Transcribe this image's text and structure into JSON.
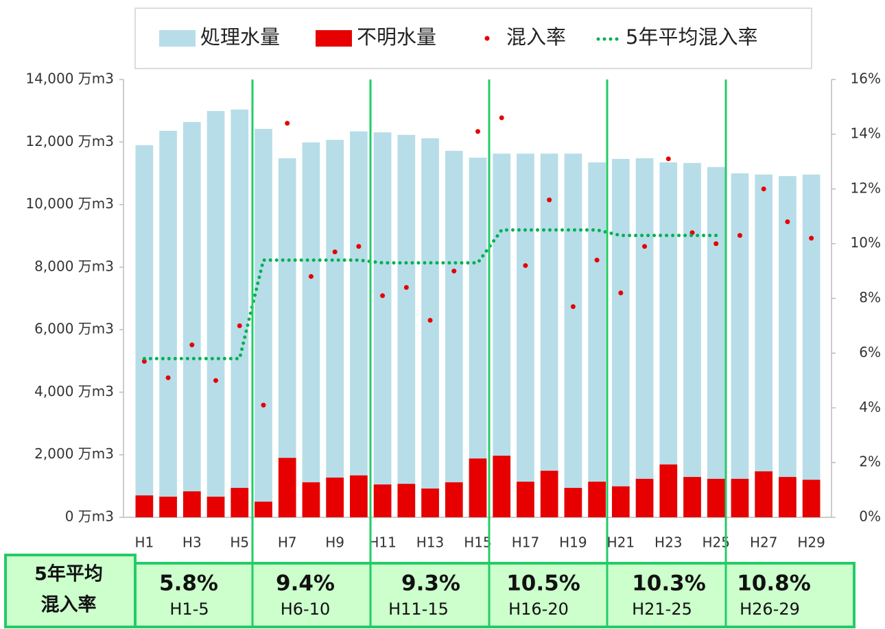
{
  "chart_data": {
    "type": "bar",
    "categories": [
      "H1",
      null,
      "H3",
      null,
      "H5",
      null,
      "H7",
      null,
      "H9",
      null,
      "H11",
      null,
      "H13",
      null,
      "H15",
      null,
      "H17",
      null,
      "H19",
      null,
      "H21",
      null,
      "H23",
      null,
      "H25",
      null,
      "H27",
      null,
      "H29"
    ],
    "series": [
      {
        "name": "処理水量",
        "type": "bar",
        "color": "#b7dde8",
        "values": [
          11900,
          12360,
          12640,
          12990,
          13040,
          12420,
          11480,
          11990,
          12070,
          12340,
          12310,
          12230,
          12120,
          11720,
          11500,
          11630,
          11630,
          11630,
          11630,
          11350,
          11460,
          11480,
          11350,
          11330,
          11200,
          11000,
          10960,
          10910,
          10960
        ]
      },
      {
        "name": "不明水量",
        "type": "bar",
        "color": "#e60000",
        "values": [
          700,
          660,
          830,
          660,
          940,
          500,
          1900,
          1120,
          1270,
          1340,
          1050,
          1070,
          920,
          1120,
          1880,
          1970,
          1140,
          1490,
          940,
          1140,
          990,
          1230,
          1690,
          1290,
          1230,
          1230,
          1470,
          1290,
          1200
        ]
      },
      {
        "name": "混入率",
        "type": "scatter",
        "axis": "y2",
        "color": "#e60000",
        "values": [
          5.7,
          5.1,
          6.3,
          5.0,
          7.0,
          4.1,
          14.4,
          8.8,
          9.7,
          9.9,
          8.1,
          8.4,
          7.2,
          9.0,
          14.1,
          14.6,
          9.2,
          11.6,
          7.7,
          9.4,
          8.2,
          9.9,
          13.1,
          10.4,
          10.0,
          10.3,
          12.0,
          10.8,
          10.2
        ]
      },
      {
        "name": "5年平均混入率",
        "type": "line",
        "axis": "y2",
        "color": "#00b050",
        "values": [
          5.8,
          5.8,
          5.8,
          5.8,
          5.8,
          9.4,
          9.4,
          9.4,
          9.4,
          9.4,
          9.3,
          9.3,
          9.3,
          9.3,
          9.3,
          10.5,
          10.5,
          10.5,
          10.5,
          10.5,
          10.3,
          10.3,
          10.3,
          10.3,
          10.3,
          null,
          null,
          null,
          null
        ]
      }
    ],
    "ylim": [
      0,
      14000
    ],
    "yticks": [
      {
        "value": 0,
        "label": "0 万m3"
      },
      {
        "value": 2000,
        "label": "2,000 万m3"
      },
      {
        "value": 4000,
        "label": "4,000 万m3"
      },
      {
        "value": 6000,
        "label": "6,000 万m3"
      },
      {
        "value": 8000,
        "label": "8,000 万m3"
      },
      {
        "value": 10000,
        "label": "10,000 万m3"
      },
      {
        "value": 12000,
        "label": "12,000 万m3"
      },
      {
        "value": 14000,
        "label": "14,000 万m3"
      }
    ],
    "y2lim": [
      0,
      16
    ],
    "y2ticks": [
      {
        "value": 0,
        "label": "0%"
      },
      {
        "value": 2,
        "label": "2%"
      },
      {
        "value": 4,
        "label": "4%"
      },
      {
        "value": 6,
        "label": "6%"
      },
      {
        "value": 8,
        "label": "8%"
      },
      {
        "value": 10,
        "label": "10%"
      },
      {
        "value": 12,
        "label": "12%"
      },
      {
        "value": 14,
        "label": "14%"
      },
      {
        "value": 16,
        "label": "16%"
      }
    ],
    "legend": "top",
    "grid": false
  },
  "table": {
    "header": [
      "5年平均",
      "混入率"
    ],
    "cells": [
      {
        "value": "5.8%",
        "range": "H1-5"
      },
      {
        "value": "9.4%",
        "range": "H6-10"
      },
      {
        "value": "9.3%",
        "range": "H11-15"
      },
      {
        "value": "10.5%",
        "range": "H16-20"
      },
      {
        "value": "10.3%",
        "range": "H21-25"
      },
      {
        "value": "10.8%",
        "range": "H26-29"
      }
    ]
  }
}
